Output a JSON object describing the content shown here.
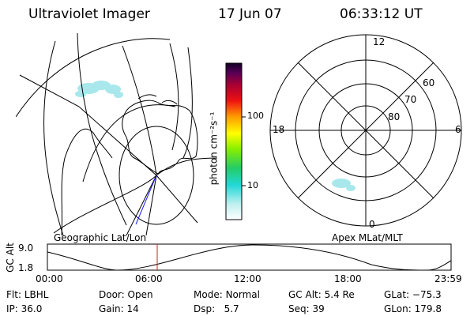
{
  "header": {
    "title": "Ultraviolet Imager",
    "date": "17 Jun 07",
    "time": "06:33:12 UT"
  },
  "panels": {
    "geo_label": "Geographic Lat/Lon",
    "apex_label": "Apex MLat/MLT"
  },
  "colorbar": {
    "unit_label": "photon cm⁻²s⁻¹",
    "tick_100": "100",
    "tick_10": "10"
  },
  "polar_plot": {
    "mlt_12": "12",
    "mlt_18": "18",
    "mlt_6": "6",
    "mlt_0": "0",
    "lat_60": "60",
    "lat_70": "70",
    "lat_80": "80"
  },
  "timeline": {
    "axis_label": "GC Alt",
    "y_max": "9.0",
    "y_min": "1.8",
    "ticks": [
      "00:00",
      "06:00",
      "12:00",
      "18:00",
      "23:59"
    ]
  },
  "info": {
    "flt_label": "Flt:",
    "flt_value": "LBHL",
    "ip_label": "IP:",
    "ip_value": "36.0",
    "door_label": "Door:",
    "door_value": "Open",
    "gain_label": "Gain:",
    "gain_value": "14",
    "mode_label": "Mode:",
    "mode_value": "Normal",
    "dsp_label": "Dsp:",
    "dsp_value": "5.7",
    "gcalt_label": "GC Alt:",
    "gcalt_value": "5.4 Re",
    "seq_label": "Seq:",
    "seq_value": "39",
    "glat_label": "GLat:",
    "glat_value": "−75.3",
    "glon_label": "GLon:",
    "glon_value": "179.8"
  },
  "colors": {
    "accent_marker": "#cc2222",
    "nightside_line": "#1a1aff"
  }
}
